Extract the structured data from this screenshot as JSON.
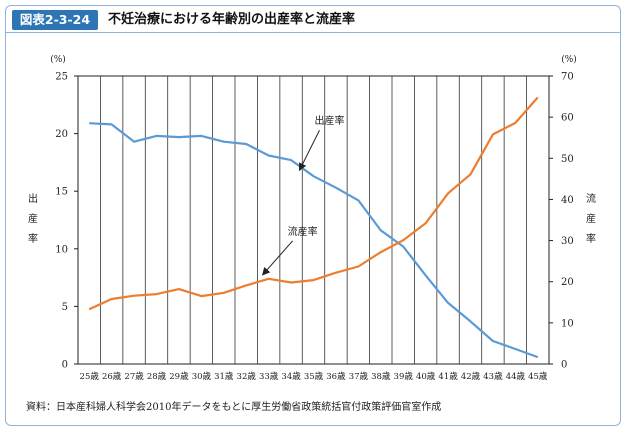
{
  "header": {
    "figure_label": "図表2-3-24",
    "title": "不妊治療における年齢別の出産率と流産率"
  },
  "caption": "資料：日本産科婦人科学会2010年データをもとに厚生労働省政策統括官付政策評価官室作成",
  "chart_data": {
    "type": "line",
    "categories": [
      "25歳",
      "26歳",
      "27歳",
      "28歳",
      "29歳",
      "30歳",
      "31歳",
      "32歳",
      "33歳",
      "34歳",
      "35歳",
      "36歳",
      "37歳",
      "38歳",
      "39歳",
      "40歳",
      "41歳",
      "42歳",
      "43歳",
      "44歳",
      "45歳"
    ],
    "left_axis": {
      "label": "出産率",
      "unit": "(%)",
      "ylim": [
        0,
        25
      ],
      "ticks": [
        0,
        5,
        10,
        15,
        20,
        25
      ]
    },
    "right_axis": {
      "label": "流産率",
      "unit": "(%)",
      "ylim": [
        0,
        70
      ],
      "ticks": [
        0,
        10,
        20,
        30,
        40,
        50,
        60,
        70
      ]
    },
    "grid": "vertical",
    "series": [
      {
        "name": "出産率",
        "axis": "left",
        "color": "#5b9bd5",
        "values": [
          20.9,
          20.8,
          19.3,
          19.8,
          19.7,
          19.8,
          19.3,
          19.1,
          18.1,
          17.7,
          16.3,
          15.3,
          14.2,
          11.6,
          10.2,
          7.7,
          5.3,
          3.7,
          2.0,
          1.3,
          0.6
        ]
      },
      {
        "name": "流産率",
        "axis": "right",
        "color": "#ed7d31",
        "values": [
          13.3,
          15.8,
          16.6,
          17.0,
          18.2,
          16.5,
          17.3,
          19.1,
          20.7,
          19.8,
          20.4,
          22.2,
          23.7,
          27.2,
          30.1,
          34.2,
          41.5,
          46.1,
          55.8,
          58.6,
          64.8
        ]
      }
    ],
    "annotations": [
      {
        "text": "出産率",
        "series": "出産率",
        "index": 10
      },
      {
        "text": "流産率",
        "series": "流産率",
        "index": 8
      }
    ]
  }
}
